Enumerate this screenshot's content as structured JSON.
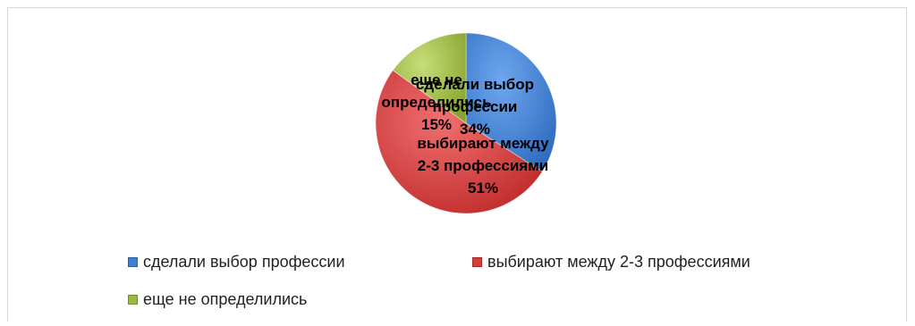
{
  "chart_data": {
    "type": "pie",
    "slices": [
      {
        "label": "сделали выбор профессии",
        "value": 34,
        "data_label": [
          "сделали выбор",
          "профессии",
          "34%"
        ],
        "color": "#3f7fd4"
      },
      {
        "label": "выбирают между 2-3 профессиями",
        "value": 51,
        "data_label": [
          "выбирают между",
          "2-3 профессиями",
          "51%"
        ],
        "color": "#d93b3b"
      },
      {
        "label": "еще не определились",
        "value": 15,
        "data_label": [
          "еще не",
          "определились",
          "15%"
        ],
        "color": "#9bbb3f"
      }
    ],
    "legend_position": "bottom"
  }
}
